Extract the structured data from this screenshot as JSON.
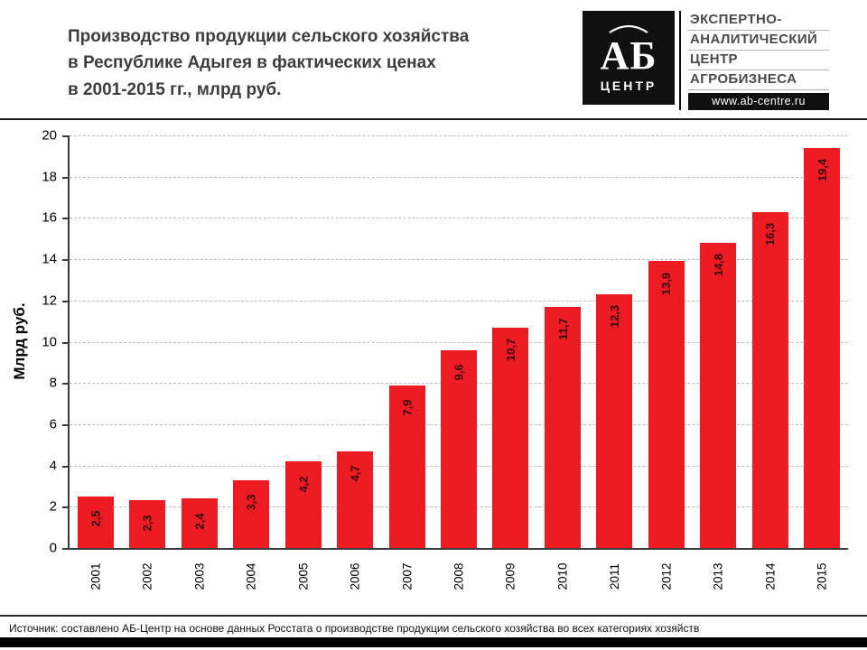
{
  "header": {
    "title_lines": [
      "Производство продукции сельского хозяйства",
      "в Республике Адыгея в фактических ценах",
      "в 2001-2015 гг., млрд руб."
    ],
    "logo": {
      "abbr": "АБ",
      "abbr_sub": "ЦЕНТР",
      "org_lines": [
        "ЭКСПЕРТНО-",
        "АНАЛИТИЧЕСКИЙ",
        "ЦЕНТР",
        "АГРОБИЗНЕСА"
      ],
      "url": "www.ab-centre.ru"
    }
  },
  "chart_data": {
    "type": "bar",
    "title": "Производство продукции сельского хозяйства в Республике Адыгея в фактических ценах в 2001-2015 гг., млрд руб.",
    "categories": [
      "2001",
      "2002",
      "2003",
      "2004",
      "2005",
      "2006",
      "2007",
      "2008",
      "2009",
      "2010",
      "2011",
      "2012",
      "2013",
      "2014",
      "2015"
    ],
    "values": [
      2.5,
      2.3,
      2.4,
      3.3,
      4.2,
      4.7,
      7.9,
      9.6,
      10.7,
      11.7,
      12.3,
      13.9,
      14.8,
      16.3,
      19.4
    ],
    "value_labels": [
      "2,5",
      "2,3",
      "2,4",
      "3,3",
      "4,2",
      "4,7",
      "7,9",
      "9,6",
      "10,7",
      "11,7",
      "12,3",
      "13,9",
      "14,8",
      "16,3",
      "19,4"
    ],
    "xlabel": "",
    "ylabel": "Млрд руб.",
    "ylim": [
      0,
      20
    ],
    "ytick_step": 2,
    "grid": "horizontal-dashed",
    "legend": "none",
    "bar_color": "#ed1c24",
    "bar_label_color": "#3a0a0a"
  },
  "footer": {
    "source": "Источник:  составлено АБ-Центр  на основе данных  Росстата  о производстве  продукции сельского  хозяйства  во всех  категориях хозяйств"
  }
}
